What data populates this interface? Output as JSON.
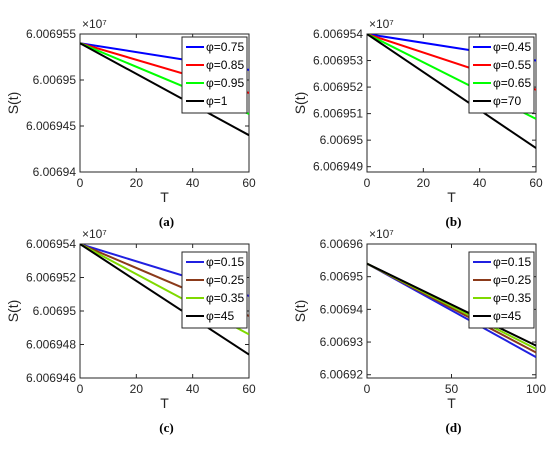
{
  "chart_data": [
    {
      "id": "a",
      "type": "line",
      "caption": "(a)",
      "xlabel": "T",
      "ylabel": "S(t)",
      "exponent": "×10⁷",
      "xlim": [
        0,
        60
      ],
      "ylim": [
        6.00694,
        6.006955
      ],
      "xticks": [
        "0",
        "20",
        "40",
        "60"
      ],
      "xtick_values": [
        0,
        20,
        40,
        60
      ],
      "yticks": [
        "6.00694",
        "6.006945",
        "6.00695",
        "6.006955"
      ],
      "ytick_values": [
        6.00694,
        6.006945,
        6.00695,
        6.006955
      ],
      "legend_position": "top-right",
      "series": [
        {
          "name": "φ=0.75",
          "color": "#0000ff",
          "x": [
            0,
            60
          ],
          "y": [
            6.006954,
            6.0069511
          ]
        },
        {
          "name": "φ=0.85",
          "color": "#ff0000",
          "x": [
            0,
            60
          ],
          "y": [
            6.006954,
            6.0069486
          ]
        },
        {
          "name": "φ=0.95",
          "color": "#00ff00",
          "x": [
            0,
            60
          ],
          "y": [
            6.006954,
            6.0069463
          ]
        },
        {
          "name": "φ=1",
          "color": "#000000",
          "x": [
            0,
            60
          ],
          "y": [
            6.006954,
            6.006944
          ]
        }
      ]
    },
    {
      "id": "b",
      "type": "line",
      "caption": "(b)",
      "xlabel": "T",
      "ylabel": "S(t)",
      "exponent": "×10⁷",
      "xlim": [
        0,
        60
      ],
      "ylim": [
        6.0069488,
        6.006954
      ],
      "xticks": [
        "0",
        "20",
        "40",
        "60"
      ],
      "xtick_values": [
        0,
        20,
        40,
        60
      ],
      "yticks": [
        "6.006949",
        "6.00695",
        "6.006951",
        "6.006952",
        "6.006953",
        "6.006954"
      ],
      "ytick_values": [
        6.006949,
        6.00695,
        6.006951,
        6.006952,
        6.006953,
        6.006954
      ],
      "legend_position": "top-right",
      "series": [
        {
          "name": "φ=0.45",
          "color": "#0000ff",
          "x": [
            0,
            60
          ],
          "y": [
            6.006954,
            6.006953
          ]
        },
        {
          "name": "φ=0.55",
          "color": "#ff0000",
          "x": [
            0,
            60
          ],
          "y": [
            6.006954,
            6.0069519
          ]
        },
        {
          "name": "φ=0.65",
          "color": "#00ff00",
          "x": [
            0,
            60
          ],
          "y": [
            6.006954,
            6.0069508
          ]
        },
        {
          "name": "φ=70",
          "color": "#000000",
          "x": [
            0,
            60
          ],
          "y": [
            6.006954,
            6.0069497
          ]
        }
      ]
    },
    {
      "id": "c",
      "type": "line",
      "caption": "(c)",
      "xlabel": "T",
      "ylabel": "S(t)",
      "exponent": "×10⁷",
      "xlim": [
        0,
        60
      ],
      "ylim": [
        6.006946,
        6.006954
      ],
      "xticks": [
        "0",
        "20",
        "40",
        "60"
      ],
      "xtick_values": [
        0,
        20,
        40,
        60
      ],
      "yticks": [
        "6.006946",
        "6.006948",
        "6.00695",
        "6.006952",
        "6.006954"
      ],
      "ytick_values": [
        6.006946,
        6.006948,
        6.00695,
        6.006952,
        6.006954
      ],
      "legend_position": "top-right",
      "series": [
        {
          "name": "φ=0.15",
          "color": "#2020e0",
          "x": [
            0,
            60
          ],
          "y": [
            6.006954,
            6.0069509
          ]
        },
        {
          "name": "φ=0.25",
          "color": "#8b3a1a",
          "x": [
            0,
            60
          ],
          "y": [
            6.006954,
            6.0069497
          ]
        },
        {
          "name": "φ=0.35",
          "color": "#7fd900",
          "x": [
            0,
            60
          ],
          "y": [
            6.006954,
            6.0069486
          ]
        },
        {
          "name": "φ=45",
          "color": "#000000",
          "x": [
            0,
            60
          ],
          "y": [
            6.006954,
            6.0069474
          ]
        }
      ]
    },
    {
      "id": "d",
      "type": "line",
      "caption": "(d)",
      "xlabel": "T",
      "ylabel": "S(t)",
      "exponent": "×10⁷",
      "xlim": [
        0,
        100
      ],
      "ylim": [
        6.006919,
        6.00696
      ],
      "xticks": [
        "0",
        "50",
        "100"
      ],
      "xtick_values": [
        0,
        50,
        100
      ],
      "yticks": [
        "6.00692",
        "6.00693",
        "6.00694",
        "6.00695",
        "6.00696"
      ],
      "ytick_values": [
        6.00692,
        6.00693,
        6.00694,
        6.00695,
        6.00696
      ],
      "legend_position": "top-right",
      "series": [
        {
          "name": "φ=0.15",
          "color": "#2020e0",
          "x": [
            0,
            100
          ],
          "y": [
            6.006954,
            6.0069254
          ]
        },
        {
          "name": "φ=0.25",
          "color": "#8b3a1a",
          "x": [
            0,
            100
          ],
          "y": [
            6.006954,
            6.0069268
          ]
        },
        {
          "name": "φ=0.35",
          "color": "#7fd900",
          "x": [
            0,
            100
          ],
          "y": [
            6.006954,
            6.0069279
          ]
        },
        {
          "name": "φ=45",
          "color": "#000000",
          "x": [
            0,
            100
          ],
          "y": [
            6.006954,
            6.0069289
          ]
        }
      ]
    }
  ]
}
